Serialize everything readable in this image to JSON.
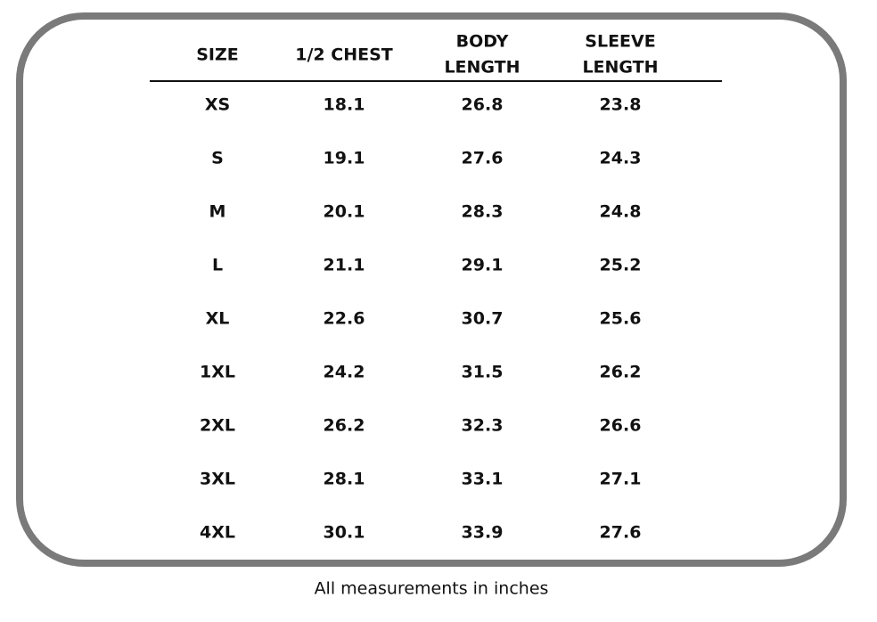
{
  "table": {
    "headers": [
      [
        "SIZE"
      ],
      [
        "1/2 CHEST"
      ],
      [
        "BODY",
        "LENGTH"
      ],
      [
        "SLEEVE",
        "LENGTH"
      ]
    ],
    "rows": [
      [
        "XS",
        18.1,
        26.8,
        23.8
      ],
      [
        "S",
        19.1,
        27.6,
        24.3
      ],
      [
        "M",
        20.1,
        28.3,
        24.8
      ],
      [
        "L",
        21.1,
        29.1,
        25.2
      ],
      [
        "XL",
        22.6,
        30.7,
        25.6
      ],
      [
        "1XL",
        24.2,
        31.5,
        26.2
      ],
      [
        "2XL",
        26.2,
        32.3,
        26.6
      ],
      [
        "3XL",
        28.1,
        33.1,
        27.1
      ],
      [
        "4XL",
        30.1,
        33.9,
        27.6
      ]
    ]
  },
  "footer": "All measurements in inches"
}
